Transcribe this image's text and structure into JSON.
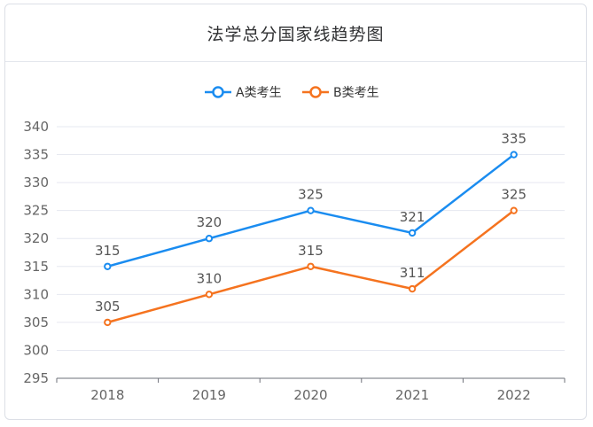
{
  "title": "法学总分国家线趋势图",
  "chart_data": {
    "type": "line",
    "title": "法学总分国家线趋势图",
    "categories": [
      "2018",
      "2019",
      "2020",
      "2021",
      "2022"
    ],
    "series": [
      {
        "name": "A类考生",
        "values": [
          315,
          320,
          325,
          321,
          335
        ],
        "color": "#1a8cf0"
      },
      {
        "name": "B类考生",
        "values": [
          305,
          310,
          315,
          311,
          325
        ],
        "color": "#f5731f"
      }
    ],
    "ylim": [
      295,
      340
    ],
    "yticks": [
      295,
      300,
      305,
      310,
      315,
      320,
      325,
      330,
      335,
      340
    ],
    "xlabel": "",
    "ylabel": "",
    "grid": true,
    "legend": "top-center",
    "data_labels": true
  }
}
